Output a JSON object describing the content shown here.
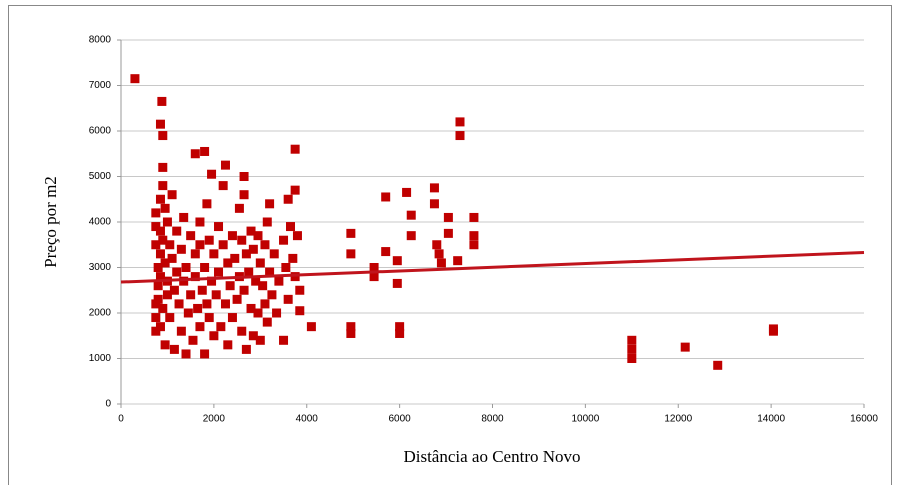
{
  "chart_data": {
    "type": "scatter",
    "x_label": "Distância ao Centro Novo",
    "y_label": "Preço por m2",
    "color": "#c00000",
    "grid": true,
    "xlim": [
      0,
      16000
    ],
    "xticks": [
      0,
      2000,
      4000,
      6000,
      8000,
      10000,
      12000,
      14000,
      16000
    ],
    "ylim": [
      0,
      8000
    ],
    "yticks": [
      0,
      1000,
      2000,
      3000,
      4000,
      5000,
      6000,
      7000,
      8000
    ],
    "x": [
      300,
      880,
      850,
      900,
      1600,
      1800,
      2250,
      3750,
      2650,
      1950,
      7300,
      7300,
      5700,
      6150,
      6750,
      11000,
      11000,
      11000,
      12150,
      12850,
      14050,
      14050,
      4950,
      4950,
      4950,
      4950,
      5450,
      5450,
      5700,
      5950,
      5950,
      6000,
      6000,
      6250,
      6250,
      6750,
      6800,
      6850,
      6900,
      7050,
      7050,
      7250,
      7600,
      7600,
      7600,
      3850,
      3850,
      4100,
      3500,
      750,
      750,
      750,
      750,
      750,
      750,
      800,
      800,
      800,
      850,
      850,
      850,
      850,
      850,
      900,
      900,
      900,
      900,
      950,
      950,
      950,
      1000,
      1000,
      1000,
      1050,
      1050,
      1100,
      1100,
      1150,
      1150,
      1200,
      1200,
      1250,
      1300,
      1300,
      1350,
      1350,
      1400,
      1400,
      1450,
      1500,
      1500,
      1550,
      1600,
      1600,
      1650,
      1700,
      1700,
      1700,
      1750,
      1800,
      1800,
      1850,
      1850,
      1900,
      1900,
      1950,
      2000,
      2000,
      2050,
      2100,
      2100,
      2150,
      2200,
      2200,
      2250,
      2300,
      2300,
      2350,
      2400,
      2400,
      2450,
      2500,
      2550,
      2550,
      2600,
      2600,
      2650,
      2650,
      2700,
      2700,
      2750,
      2800,
      2800,
      2850,
      2850,
      2900,
      2950,
      2950,
      3000,
      3000,
      3050,
      3100,
      3100,
      3150,
      3150,
      3200,
      3200,
      3250,
      3300,
      3350,
      3400,
      3500,
      3550,
      3600,
      3600,
      3650,
      3700,
      3750,
      3750,
      3800
    ],
    "values": [
      7150,
      6650,
      6150,
      5900,
      5500,
      5550,
      5250,
      5600,
      5000,
      5050,
      6200,
      5900,
      4550,
      4650,
      4750,
      1400,
      1200,
      1000,
      1250,
      850,
      1650,
      1600,
      3750,
      3300,
      1700,
      1550,
      3000,
      2800,
      3350,
      3150,
      2650,
      1700,
      1550,
      4150,
      3700,
      4400,
      3500,
      3300,
      3100,
      4100,
      3750,
      3150,
      4100,
      3700,
      3500,
      2500,
      2050,
      1700,
      1400,
      4200,
      3900,
      3500,
      2200,
      1900,
      1600,
      3000,
      2600,
      2300,
      4500,
      3800,
      3300,
      2800,
      1700,
      5200,
      4800,
      3600,
      2100,
      4300,
      3100,
      1300,
      4000,
      2700,
      2400,
      3500,
      1900,
      4600,
      3200,
      2500,
      1200,
      3800,
      2900,
      2200,
      3400,
      1600,
      4100,
      2700,
      3000,
      1100,
      2000,
      3700,
      2400,
      1400,
      3300,
      2800,
      2100,
      4000,
      3500,
      1700,
      2500,
      3000,
      1100,
      4400,
      2200,
      3600,
      1900,
      2700,
      3300,
      1500,
      2400,
      3900,
      2900,
      1700,
      4800,
      3500,
      2200,
      3100,
      1300,
      2600,
      3700,
      1900,
      3200,
      2300,
      4300,
      2800,
      3600,
      1600,
      4600,
      2500,
      3300,
      1200,
      2900,
      3800,
      2100,
      3400,
      1500,
      2700,
      3700,
      2000,
      3100,
      1400,
      2600,
      3500,
      2200,
      4000,
      1800,
      2900,
      4400,
      2400,
      3300,
      2000,
      2700,
      3600,
      3000,
      2300,
      4500,
      3900,
      3200,
      4700,
      2800,
      3700
    ],
    "trendline": {
      "x": [
        0,
        16000
      ],
      "values": [
        2680,
        3330
      ],
      "color": "#c0141c"
    }
  }
}
